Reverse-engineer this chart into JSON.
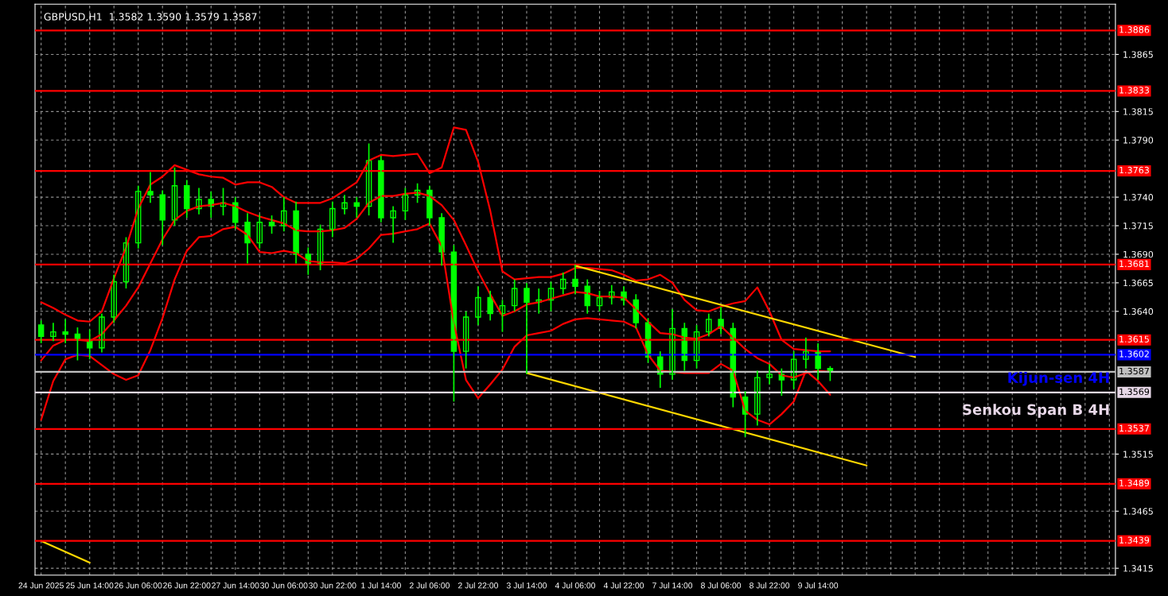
{
  "chart_data": {
    "type": "candlestick",
    "title": "GBPUSD,H1  1.3582 1.3590 1.3579 1.3587",
    "color": "#00ff00",
    "categories": [
      "24 Jun 2025",
      null,
      null,
      null,
      "25 Jun 14:00",
      null,
      null,
      null,
      "26 Jun 06:00",
      null,
      null,
      null,
      "26 Jun 22:00",
      null,
      null,
      null,
      "27 Jun 14:00",
      null,
      null,
      null,
      "30 Jun 06:00",
      null,
      null,
      null,
      "30 Jun 22:00",
      null,
      null,
      null,
      "1 Jul 14:00",
      null,
      null,
      null,
      "2 Jul 06:00",
      null,
      null,
      null,
      "2 Jul 22:00",
      null,
      null,
      null,
      "3 Jul 14:00",
      null,
      null,
      null,
      "4 Jul 06:00",
      null,
      null,
      null,
      "4 Jul 22:00",
      null,
      null,
      null,
      "7 Jul 14:00",
      null,
      null,
      null,
      "8 Jul 06:00",
      null,
      null,
      null,
      "8 Jul 22:00",
      null,
      null,
      null,
      "9 Jul 14:00",
      null,
      null,
      null,
      null,
      null,
      null,
      null,
      null,
      null,
      null,
      null,
      null,
      null,
      null,
      null,
      null,
      null,
      null,
      null,
      null,
      null,
      null,
      null,
      null
    ],
    "ohlc": [
      [
        1.3628,
        1.3632,
        1.3612,
        1.3618
      ],
      [
        1.3618,
        1.363,
        1.3614,
        1.3622
      ],
      [
        1.3622,
        1.3633,
        1.3612,
        1.362
      ],
      [
        1.362,
        1.3626,
        1.3597,
        1.3615
      ],
      [
        1.3615,
        1.3624,
        1.3598,
        1.3608
      ],
      [
        1.3608,
        1.3638,
        1.3604,
        1.3635
      ],
      [
        1.3635,
        1.3672,
        1.363,
        1.3666
      ],
      [
        1.3666,
        1.3705,
        1.366,
        1.37
      ],
      [
        1.37,
        1.375,
        1.3695,
        1.3745
      ],
      [
        1.3745,
        1.3762,
        1.3735,
        1.3742
      ],
      [
        1.3742,
        1.3746,
        1.3698,
        1.372
      ],
      [
        1.372,
        1.3766,
        1.3715,
        1.375
      ],
      [
        1.375,
        1.3755,
        1.3722,
        1.373
      ],
      [
        1.373,
        1.3748,
        1.3725,
        1.3738
      ],
      [
        1.3738,
        1.3745,
        1.3722,
        1.3732
      ],
      [
        1.3732,
        1.3748,
        1.3724,
        1.3735
      ],
      [
        1.3735,
        1.374,
        1.3712,
        1.3718
      ],
      [
        1.3718,
        1.3726,
        1.3682,
        1.37
      ],
      [
        1.37,
        1.3725,
        1.3695,
        1.3718
      ],
      [
        1.3718,
        1.3724,
        1.3708,
        1.3715
      ],
      [
        1.3715,
        1.374,
        1.371,
        1.3728
      ],
      [
        1.3728,
        1.3736,
        1.3682,
        1.369
      ],
      [
        1.369,
        1.3696,
        1.3672,
        1.3682
      ],
      [
        1.3682,
        1.3716,
        1.3676,
        1.3712
      ],
      [
        1.3712,
        1.3736,
        1.3705,
        1.373
      ],
      [
        1.373,
        1.3742,
        1.3725,
        1.3735
      ],
      [
        1.3735,
        1.374,
        1.3722,
        1.3732
      ],
      [
        1.3732,
        1.3787,
        1.3724,
        1.3772
      ],
      [
        1.3772,
        1.3776,
        1.3718,
        1.3722
      ],
      [
        1.3722,
        1.3732,
        1.37,
        1.3728
      ],
      [
        1.3728,
        1.3748,
        1.372,
        1.3742
      ],
      [
        1.3742,
        1.3752,
        1.3735,
        1.3746
      ],
      [
        1.3746,
        1.375,
        1.3715,
        1.3722
      ],
      [
        1.3722,
        1.3726,
        1.368,
        1.3692
      ],
      [
        1.3692,
        1.3698,
        1.3561,
        1.3605
      ],
      [
        1.3605,
        1.364,
        1.359,
        1.3635
      ],
      [
        1.3635,
        1.3662,
        1.3628,
        1.3652
      ],
      [
        1.3652,
        1.3658,
        1.3632,
        1.3638
      ],
      [
        1.3638,
        1.365,
        1.3622,
        1.3645
      ],
      [
        1.3645,
        1.3668,
        1.364,
        1.366
      ],
      [
        1.366,
        1.3665,
        1.3585,
        1.3648
      ],
      [
        1.3648,
        1.366,
        1.3638,
        1.365
      ],
      [
        1.365,
        1.3666,
        1.364,
        1.366
      ],
      [
        1.366,
        1.3674,
        1.3655,
        1.3668
      ],
      [
        1.3668,
        1.3681,
        1.3655,
        1.3662
      ],
      [
        1.3662,
        1.3668,
        1.3638,
        1.3645
      ],
      [
        1.3645,
        1.3658,
        1.364,
        1.3652
      ],
      [
        1.3652,
        1.3663,
        1.3646,
        1.3657
      ],
      [
        1.3657,
        1.3662,
        1.3645,
        1.365
      ],
      [
        1.365,
        1.3655,
        1.3625,
        1.363
      ],
      [
        1.363,
        1.3634,
        1.3595,
        1.36
      ],
      [
        1.36,
        1.3605,
        1.3573,
        1.3585
      ],
      [
        1.3585,
        1.3642,
        1.358,
        1.3625
      ],
      [
        1.3625,
        1.363,
        1.3588,
        1.3597
      ],
      [
        1.3597,
        1.3628,
        1.359,
        1.3622
      ],
      [
        1.3622,
        1.3638,
        1.3618,
        1.3633
      ],
      [
        1.3633,
        1.3644,
        1.362,
        1.3625
      ],
      [
        1.3625,
        1.363,
        1.3556,
        1.3565
      ],
      [
        1.3565,
        1.357,
        1.353,
        1.355
      ],
      [
        1.355,
        1.3588,
        1.354,
        1.3582
      ],
      [
        1.3582,
        1.3594,
        1.3576,
        1.3585
      ],
      [
        1.3585,
        1.359,
        1.3566,
        1.358
      ],
      [
        1.358,
        1.3605,
        1.3572,
        1.3598
      ],
      [
        1.3598,
        1.3617,
        1.359,
        1.3605
      ],
      [
        1.3605,
        1.3612,
        1.358,
        1.359
      ],
      [
        1.359,
        1.3592,
        1.3579,
        1.3587
      ],
      null,
      null,
      null,
      null,
      null,
      null,
      null,
      null,
      null,
      null,
      null,
      null,
      null,
      null,
      null,
      null,
      null,
      null,
      null,
      null,
      null,
      null,
      null
    ],
    "series": [
      {
        "type": "line",
        "color": "#ff0000",
        "values": [
          1.3648,
          1.3643,
          1.3637,
          1.3632,
          1.3631,
          1.364,
          1.3669,
          1.3696,
          1.373,
          1.3751,
          1.3758,
          1.3768,
          1.3764,
          1.376,
          1.3758,
          1.3757,
          1.3751,
          1.3753,
          1.3753,
          1.3749,
          1.374,
          1.3735,
          1.3735,
          1.3735,
          1.3739,
          1.3746,
          1.3753,
          1.3772,
          1.3777,
          1.3776,
          1.3777,
          1.3778,
          1.3761,
          1.3766,
          1.3801,
          1.3799,
          1.3771,
          1.3728,
          1.3675,
          1.3668,
          1.3669,
          1.367,
          1.367,
          1.3673,
          1.3678,
          1.3678,
          1.3677,
          1.3676,
          1.3672,
          1.3667,
          1.3668,
          1.3672,
          1.3665,
          1.365,
          1.3641,
          1.364,
          1.3644,
          1.3647,
          1.3649,
          1.3661,
          1.364,
          1.3615,
          1.3607,
          1.3606,
          1.3605,
          1.3605,
          null,
          null,
          null,
          null,
          null,
          null,
          null,
          null,
          null,
          null,
          null,
          null,
          null,
          null,
          null,
          null,
          null,
          null,
          null,
          null,
          null,
          null,
          null
        ]
      },
      {
        "type": "line",
        "color": "#ff0000",
        "values": [
          1.3597,
          1.361,
          1.3615,
          1.3615,
          1.3614,
          1.362,
          1.3632,
          1.3645,
          1.3661,
          1.3682,
          1.3703,
          1.372,
          1.3728,
          1.3732,
          1.3733,
          1.3735,
          1.3732,
          1.3727,
          1.3723,
          1.372,
          1.3717,
          1.3711,
          1.371,
          1.371,
          1.3711,
          1.3713,
          1.3721,
          1.3735,
          1.3741,
          1.3741,
          1.3743,
          1.3744,
          1.3741,
          1.3733,
          1.372,
          1.3698,
          1.3675,
          1.3655,
          1.3636,
          1.364,
          1.3646,
          1.3648,
          1.3651,
          1.3654,
          1.3657,
          1.3656,
          1.3653,
          1.3653,
          1.3652,
          1.3642,
          1.3631,
          1.3621,
          1.362,
          1.3617,
          1.3616,
          1.362,
          1.3627,
          1.3617,
          1.3607,
          1.3599,
          1.3594,
          1.3584,
          1.3582,
          1.3586,
          1.3588,
          1.3587,
          null,
          null,
          null,
          null,
          null,
          null,
          null,
          null,
          null,
          null,
          null,
          null,
          null,
          null,
          null,
          null,
          null,
          null,
          null,
          null,
          null,
          null,
          null
        ]
      },
      {
        "type": "line",
        "color": "#ff0000",
        "values": [
          1.3545,
          1.3579,
          1.3598,
          1.3602,
          1.3601,
          1.3593,
          1.3585,
          1.358,
          1.3584,
          1.3606,
          1.3634,
          1.3668,
          1.3693,
          1.3705,
          1.3706,
          1.3712,
          1.3714,
          1.3707,
          1.3692,
          1.3691,
          1.3693,
          1.3691,
          1.3684,
          1.3683,
          1.3683,
          1.3682,
          1.3686,
          1.3695,
          1.3707,
          1.3708,
          1.371,
          1.3712,
          1.3717,
          1.3697,
          1.363,
          1.358,
          1.3564,
          1.3576,
          1.3589,
          1.3609,
          1.3619,
          1.3621,
          1.3623,
          1.3629,
          1.3633,
          1.3634,
          1.3633,
          1.3632,
          1.3631,
          1.3626,
          1.3602,
          1.3588,
          1.3587,
          1.3586,
          1.3586,
          1.3586,
          1.3594,
          1.3588,
          1.3553,
          1.3545,
          1.3541,
          1.355,
          1.3561,
          1.3588,
          1.3579,
          1.3567,
          null,
          null,
          null,
          null,
          null,
          null,
          null,
          null,
          null,
          null,
          null,
          null,
          null,
          null,
          null,
          null,
          null,
          null,
          null,
          null,
          null,
          null,
          null
        ]
      },
      {
        "type": "line",
        "color": "#ffd700",
        "values": [
          null,
          null,
          null,
          null,
          null,
          null,
          null,
          null,
          null,
          null,
          null,
          null,
          null,
          null,
          null,
          null,
          null,
          null,
          null,
          null,
          null,
          null,
          null,
          null,
          null,
          null,
          null,
          null,
          null,
          null,
          null,
          null,
          null,
          null,
          null,
          null,
          null,
          null,
          null,
          null,
          null,
          null,
          null,
          null,
          1.368,
          null,
          null,
          null,
          null,
          null,
          null,
          null,
          null,
          null,
          null,
          null,
          null,
          null,
          null,
          null,
          null,
          null,
          null,
          null,
          null,
          null,
          null,
          null,
          null,
          null,
          null,
          null,
          1.36,
          null,
          null,
          null,
          null,
          null,
          null,
          null,
          null,
          null,
          null,
          null,
          null,
          null,
          null,
          null,
          null
        ]
      },
      {
        "type": "line",
        "color": "#ffd700",
        "values": [
          null,
          null,
          null,
          null,
          null,
          null,
          null,
          null,
          null,
          null,
          null,
          null,
          null,
          null,
          null,
          null,
          null,
          null,
          null,
          null,
          null,
          null,
          null,
          null,
          null,
          null,
          null,
          null,
          null,
          null,
          null,
          null,
          null,
          null,
          null,
          null,
          null,
          null,
          null,
          null,
          1.3586,
          null,
          null,
          null,
          null,
          null,
          null,
          null,
          null,
          null,
          null,
          null,
          null,
          null,
          null,
          null,
          null,
          null,
          null,
          null,
          null,
          null,
          null,
          null,
          null,
          null,
          null,
          null,
          1.3505,
          null,
          null,
          null,
          null,
          null,
          null,
          null,
          null,
          null,
          null,
          null,
          null,
          null,
          null,
          null,
          null,
          null,
          null,
          null,
          null
        ]
      },
      {
        "type": "line",
        "color": "#ffd700",
        "values": [
          1.3439,
          null,
          null,
          null,
          1.342,
          null,
          null,
          null,
          null,
          null,
          null,
          null,
          null,
          null,
          null,
          null,
          null,
          null,
          null,
          null,
          null,
          null,
          null,
          null,
          null,
          null,
          null,
          null,
          null,
          null,
          null,
          null,
          null,
          null,
          null,
          null,
          null,
          null,
          null,
          null,
          null,
          null,
          null,
          null,
          null,
          null,
          null,
          null,
          null,
          null,
          null,
          null,
          null,
          null,
          null,
          null,
          null,
          null,
          null,
          null,
          null,
          null,
          null,
          null,
          null,
          null,
          null,
          null,
          null,
          null,
          null,
          null,
          null,
          null,
          null,
          null,
          null,
          null,
          null,
          null,
          null,
          null,
          null,
          null,
          null,
          null,
          null,
          null,
          null
        ]
      }
    ],
    "ylim": [
      1.3409,
      1.3909
    ],
    "yticks": [
      {
        "value": 1.3415,
        "label": "1.3415"
      },
      {
        "value": 1.3465,
        "label": "1.3465"
      },
      {
        "value": 1.3515,
        "label": "1.3515"
      },
      {
        "value": 1.364,
        "label": "1.3640"
      },
      {
        "value": 1.3665,
        "label": "1.3665"
      },
      {
        "value": 1.369,
        "label": "1.3690"
      },
      {
        "value": 1.3715,
        "label": "1.3715"
      },
      {
        "value": 1.374,
        "label": "1.3740"
      },
      {
        "value": 1.379,
        "label": "1.3790"
      },
      {
        "value": 1.3815,
        "label": "1.3815"
      },
      {
        "value": 1.3865,
        "label": "1.3865"
      }
    ],
    "grid": true,
    "ref_lines": [
      {
        "axis": "y",
        "value": 1.3886,
        "label": "1.3886",
        "color": "#ff0000"
      },
      {
        "axis": "y",
        "value": 1.3833,
        "label": "1.3833",
        "color": "#ff0000"
      },
      {
        "axis": "y",
        "value": 1.3763,
        "label": "1.3763",
        "color": "#ff0000"
      },
      {
        "axis": "y",
        "value": 1.3681,
        "label": "1.3681",
        "color": "#ff0000"
      },
      {
        "axis": "y",
        "value": 1.3615,
        "label": "1.3615",
        "color": "#ff0000"
      },
      {
        "axis": "y",
        "value": 1.3602,
        "label": "1.3602",
        "color": "#0000ff"
      },
      {
        "axis": "y",
        "value": 1.3587,
        "label": "1.3587",
        "color": "#c0c0c0"
      },
      {
        "axis": "y",
        "value": 1.3569,
        "label": "1.3569",
        "color": "#e8d8e8"
      },
      {
        "axis": "y",
        "value": 1.3537,
        "label": "1.3537",
        "color": "#ff0000"
      },
      {
        "axis": "y",
        "value": 1.3489,
        "label": "1.3489",
        "color": "#ff0000"
      },
      {
        "axis": "y",
        "value": 1.3439,
        "label": "1.3439",
        "color": "#ff0000"
      }
    ],
    "annotations": [
      "Kijun-sen 4H",
      "Senkou Span B 4H"
    ]
  }
}
